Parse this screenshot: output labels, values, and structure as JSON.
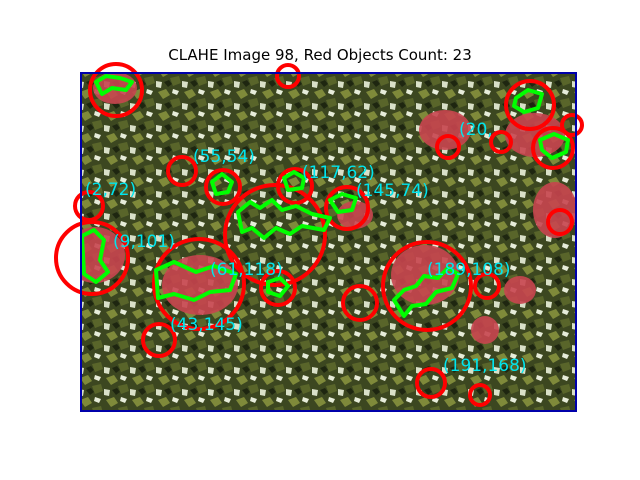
{
  "figure": {
    "title": "CLAHE Image 98, Red Objects Count: 23"
  },
  "colors": {
    "circle": "#ff0000",
    "contour": "#00ff00",
    "label": "#00e5ee",
    "frame": "#0000aa",
    "foliage_dark": "#2f3a1c",
    "foliage_mid": "#5e6b2e",
    "apple": "#c8454f"
  },
  "detections": [
    {
      "label": "(55,54)"
    },
    {
      "label": "(117,62)"
    },
    {
      "label": "(145,74)"
    },
    {
      "label": "(2,72)"
    },
    {
      "label": "(9,101)"
    },
    {
      "label": "(189,108)"
    },
    {
      "label": "(43,145)"
    },
    {
      "label": "(191,168)"
    },
    {
      "label": "(20,"
    },
    {
      "label": "(61,118)"
    }
  ]
}
